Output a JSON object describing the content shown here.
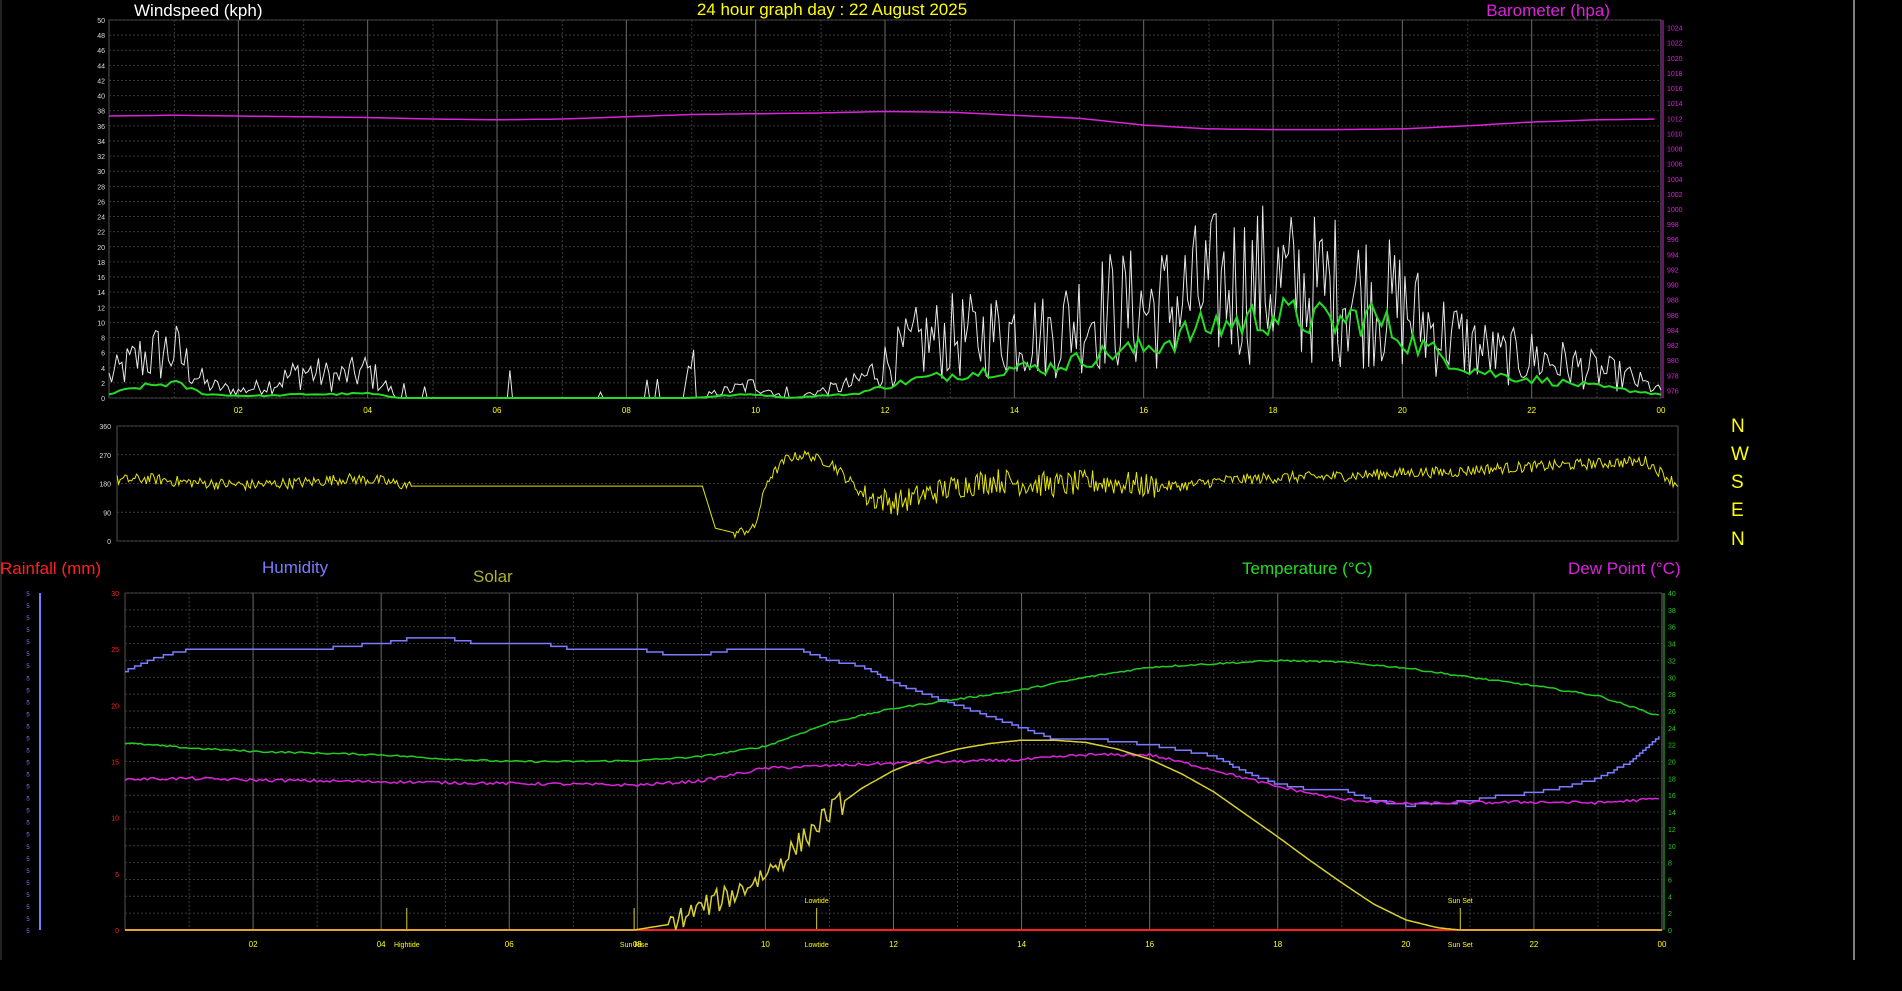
{
  "page": {
    "title": "24 hour graph day : 22 August 2025"
  },
  "colors": {
    "background": "#000000",
    "grid": "#3a3a3a",
    "gridMajor": "#6a6a6a",
    "wind": "#e8e8e8",
    "windAvg": "#22dd22",
    "baro": "#dd22dd",
    "dir": "#e6e600",
    "rain": "#ff2020",
    "humidity": "#7b7bff",
    "temp": "#22cc22",
    "dew": "#dd22dd",
    "solar": "#d8d030",
    "titleYellow": "#ffff00",
    "labelGreen": "#22dd22",
    "labelMagenta": "#dd22dd",
    "labelBlue": "#7b7bff",
    "labelRed": "#ff2020",
    "labelOlive": "#b0b030"
  },
  "compass_letters": [
    "N",
    "W",
    "S",
    "E",
    "N"
  ],
  "chart_data": [
    {
      "type": "line",
      "title": "24 hour graph day : 22 August 2025",
      "left_axis_label": "Windspeed (kph)",
      "right_axis_label": "Barometer (hpa)",
      "x_ticks": [
        "02",
        "04",
        "06",
        "08",
        "10",
        "12",
        "14",
        "16",
        "18",
        "20",
        "22",
        "00"
      ],
      "x_range_hours": [
        0,
        24
      ],
      "y_left_range": [
        0,
        50
      ],
      "y_left_step": 2,
      "y_right_range": [
        975,
        1025
      ],
      "y_right_step": 2,
      "grid": true,
      "series": [
        {
          "key": "wind_gust",
          "x_hours": [
            0,
            0.5,
            1,
            1.5,
            2,
            2.5,
            3,
            3.5,
            4,
            4.5,
            5,
            5.5,
            6,
            6.5,
            7,
            7.5,
            8,
            8.5,
            9,
            9.5,
            10,
            10.5,
            11,
            11.5,
            12,
            12.5,
            13,
            13.5,
            14,
            14.5,
            15,
            15.5,
            16,
            16.5,
            17,
            17.5,
            18,
            18.5,
            19,
            19.5,
            20,
            20.5,
            21,
            21.5,
            22,
            22.5,
            23,
            23.5,
            24
          ],
          "values": [
            3,
            6,
            7,
            2,
            1,
            2,
            4,
            3,
            4,
            0,
            0,
            0,
            0,
            0,
            0,
            0,
            0,
            0,
            0,
            1,
            2,
            0,
            1,
            2,
            5,
            8,
            9,
            9,
            10,
            9,
            12,
            13,
            13,
            14,
            16,
            17,
            17,
            16,
            16,
            15,
            13,
            10,
            8,
            6,
            6,
            5,
            4,
            3,
            1
          ]
        },
        {
          "key": "wind_avg",
          "x_hours": [
            0,
            0.5,
            1,
            1.5,
            2,
            2.5,
            3,
            3.5,
            4,
            4.5,
            5,
            5.5,
            6,
            6.5,
            7,
            7.5,
            8,
            8.5,
            9,
            9.5,
            10,
            10.5,
            11,
            11.5,
            12,
            12.5,
            13,
            13.5,
            14,
            14.5,
            15,
            15.5,
            16,
            16.5,
            17,
            17.5,
            18,
            18.5,
            19,
            19.5,
            20,
            20.5,
            21,
            21.5,
            22,
            22.5,
            23,
            23.5,
            24
          ],
          "values": [
            0.5,
            1.5,
            2,
            0.5,
            0.3,
            0.3,
            0.5,
            0.5,
            0.6,
            0,
            0,
            0,
            0,
            0,
            0,
            0,
            0,
            0,
            0,
            0.3,
            0.5,
            0,
            0.3,
            0.5,
            1.5,
            2.5,
            3,
            3.5,
            4,
            4,
            5,
            6,
            6.5,
            8,
            9.5,
            10,
            11,
            10.5,
            10,
            11,
            8,
            6,
            4,
            3,
            2.5,
            2,
            1.5,
            1,
            0.5
          ]
        },
        {
          "key": "barometer",
          "x_hours": [
            0,
            1,
            2,
            3,
            4,
            5,
            6,
            7,
            8,
            9,
            10,
            11,
            12,
            13,
            14,
            15,
            16,
            17,
            18,
            19,
            20,
            21,
            22,
            23,
            24
          ],
          "values": [
            1012.3,
            1012.4,
            1012.3,
            1012.2,
            1012.1,
            1011.9,
            1011.8,
            1011.9,
            1012.2,
            1012.5,
            1012.6,
            1012.7,
            1012.9,
            1012.8,
            1012.4,
            1012.0,
            1011.1,
            1010.6,
            1010.5,
            1010.5,
            1010.6,
            1011.0,
            1011.5,
            1011.8,
            1011.9
          ]
        }
      ]
    },
    {
      "type": "line",
      "title": "",
      "y_ticks": [
        0,
        90,
        180,
        270,
        360
      ],
      "y_range": [
        0,
        360
      ],
      "x_range_hours": [
        0,
        24
      ],
      "grid": true,
      "series": [
        {
          "key": "wind_direction",
          "x_hours": [
            0,
            0.5,
            1,
            1.5,
            2,
            2.5,
            3,
            3.5,
            4,
            4.5,
            5,
            5.5,
            6,
            6.5,
            7,
            7.5,
            8,
            8.5,
            9,
            9.2,
            9.5,
            9.8,
            10,
            10.3,
            10.6,
            11,
            11.5,
            12,
            12.5,
            13,
            13.5,
            14,
            14.5,
            15,
            15.5,
            16,
            16.5,
            17,
            17.5,
            18,
            18.5,
            19,
            19.5,
            20,
            20.5,
            21,
            21.5,
            22,
            22.5,
            23,
            23.5,
            24
          ],
          "values": [
            190,
            195,
            185,
            180,
            175,
            180,
            185,
            195,
            190,
            172,
            172,
            172,
            172,
            172,
            172,
            172,
            172,
            172,
            172,
            40,
            25,
            40,
            190,
            260,
            270,
            240,
            140,
            120,
            150,
            175,
            190,
            180,
            175,
            185,
            180,
            170,
            175,
            190,
            195,
            200,
            200,
            205,
            210,
            215,
            215,
            225,
            230,
            235,
            240,
            245,
            250,
            175
          ]
        }
      ]
    },
    {
      "type": "line",
      "title": "",
      "labels": {
        "rainfall": "Rainfall (mm)",
        "humidity": "Humidity",
        "solar": "Solar",
        "temperature": "Temperature (°C)",
        "dewpoint": "Dew Point (°C)"
      },
      "x_ticks": [
        "02",
        "04",
        "06",
        "08",
        "10",
        "12",
        "14",
        "16",
        "18",
        "20",
        "22",
        "00"
      ],
      "x_range_hours": [
        0,
        24
      ],
      "y_left_range": [
        0,
        30
      ],
      "y_left_ticks": [
        0,
        5,
        10,
        15,
        20,
        25,
        30
      ],
      "y_right_range": [
        0,
        40
      ],
      "y_right_step": 2,
      "grid": true,
      "annotations": [
        {
          "label_bottom": "Hightide",
          "x_hours": 4.4
        },
        {
          "label_bottom": "Sun Rise",
          "x_hours": 7.95
        },
        {
          "label_bottom": "Lowtide",
          "label_top": "Lowtide",
          "x_hours": 10.8
        },
        {
          "label_bottom": "Sun Set",
          "label_top": "Sun Set",
          "x_hours": 20.85
        }
      ],
      "series": [
        {
          "key": "rainfall",
          "x_hours": [
            0,
            24
          ],
          "values": [
            0,
            0
          ]
        },
        {
          "key": "humidity",
          "x_hours": [
            0,
            0.5,
            1,
            1.5,
            2,
            2.5,
            3,
            3.5,
            4,
            4.5,
            5,
            5.5,
            6,
            6.5,
            7,
            7.5,
            8,
            8.5,
            9,
            9.5,
            10,
            10.5,
            11,
            11.5,
            12,
            12.5,
            13,
            13.5,
            14,
            14.5,
            15,
            15.5,
            16,
            16.5,
            17,
            17.5,
            18,
            18.5,
            19,
            19.5,
            20,
            20.5,
            21,
            21.5,
            22,
            22.5,
            23,
            23.5,
            24
          ],
          "values": [
            23,
            24.3,
            25,
            25,
            25,
            25,
            25,
            25.3,
            25.5,
            26,
            26,
            25.5,
            25.5,
            25.5,
            25,
            25,
            25,
            24.5,
            24.5,
            25,
            25,
            25,
            24,
            23.5,
            22,
            21,
            20,
            19,
            18,
            17,
            17,
            16.8,
            16.5,
            16,
            15.5,
            14,
            13,
            12.5,
            12.5,
            11.5,
            11.1,
            11.2,
            11.5,
            12,
            12.2,
            12.8,
            13.5,
            15,
            17.5
          ]
        },
        {
          "key": "temperature",
          "x_hours": [
            0,
            1,
            2,
            3,
            4,
            5,
            6,
            7,
            8,
            9,
            10,
            11,
            12,
            13,
            14,
            15,
            16,
            17,
            18,
            19,
            20,
            21,
            22,
            23,
            24
          ],
          "values": [
            22.2,
            21.6,
            21.2,
            21.0,
            20.8,
            20.3,
            20.0,
            20.0,
            20.1,
            20.6,
            21.8,
            24.6,
            26.3,
            27.4,
            28.5,
            30.0,
            31.2,
            31.6,
            32.0,
            31.8,
            31.1,
            30.0,
            29.0,
            27.8,
            25.3
          ]
        },
        {
          "key": "dewpoint",
          "x_hours": [
            0,
            1,
            2,
            3,
            4,
            5,
            6,
            7,
            8,
            9,
            10,
            11,
            12,
            13,
            14,
            15,
            16,
            17,
            18,
            19,
            20,
            21,
            22,
            23,
            24
          ],
          "values": [
            17.9,
            18.0,
            17.8,
            17.7,
            17.6,
            17.5,
            17.4,
            17.3,
            17.2,
            17.7,
            19.2,
            19.5,
            19.8,
            20.0,
            20.2,
            20.8,
            20.8,
            19.0,
            17.0,
            15.5,
            15.0,
            15.1,
            15.2,
            15.1,
            15.6
          ]
        },
        {
          "key": "solar",
          "x_hours": [
            0,
            7.95,
            8.5,
            9,
            9.5,
            10,
            10.5,
            11,
            11.5,
            12,
            12.5,
            13,
            13.5,
            14,
            14.5,
            15,
            15.5,
            16,
            16.5,
            17,
            17.5,
            18,
            18.5,
            19,
            19.5,
            20,
            20.5,
            20.85,
            21,
            24
          ],
          "values": [
            0,
            0,
            0.5,
            2,
            3.2,
            5,
            7.5,
            10.5,
            12.6,
            14.2,
            15.3,
            16.1,
            16.6,
            16.9,
            16.9,
            16.7,
            16.1,
            15.2,
            13.9,
            12.3,
            10.3,
            8.3,
            6.2,
            4.2,
            2.3,
            0.9,
            0.2,
            0,
            0,
            0
          ]
        }
      ]
    }
  ]
}
